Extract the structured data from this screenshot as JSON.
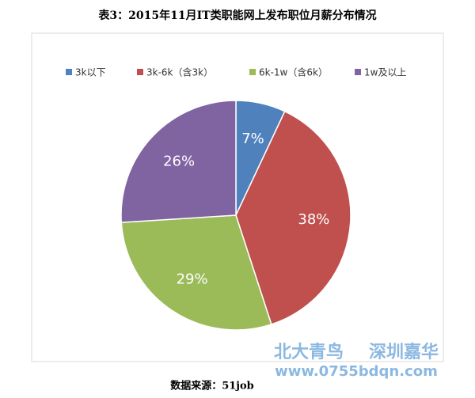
{
  "chart_data": {
    "type": "pie",
    "title": "表3：2015年11月IT类职能网上发布职位月薪分布情况",
    "categories": [
      "3k以下",
      "3k-6k（含3k）",
      "6k-1w（含6k）",
      "1w及以上"
    ],
    "values": [
      7,
      38,
      29,
      26
    ],
    "value_labels": [
      "7%",
      "38%",
      "29%",
      "26%"
    ],
    "colors": [
      "#4f81bd",
      "#c0504d",
      "#9bbb59",
      "#8064a2"
    ],
    "legend": "top",
    "source": "数据来源：51job",
    "watermark": [
      "北大青鸟",
      "深圳嘉华",
      "www.0755bdqn.com"
    ]
  }
}
